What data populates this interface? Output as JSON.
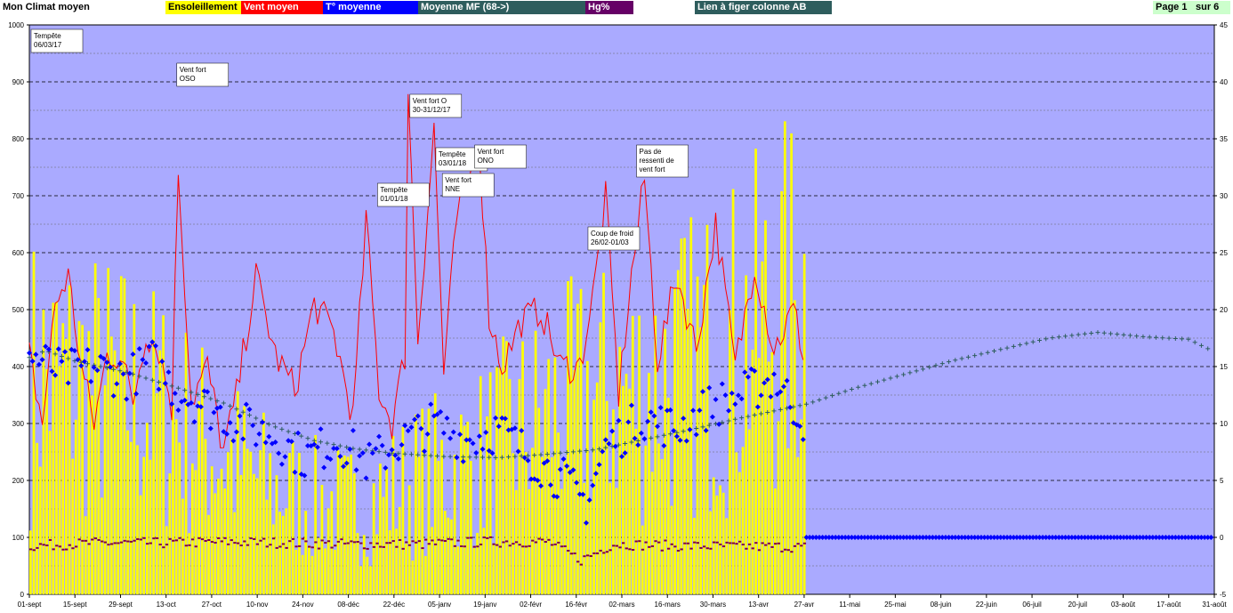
{
  "header": {
    "title": "Mon Climat moyen",
    "legend": [
      {
        "label": "Ensoleillement",
        "bg": "#ffff00",
        "fg": "#000000"
      },
      {
        "label": "Vent moyen",
        "bg": "#ff0000",
        "fg": "#ffffff"
      },
      {
        "label": "T° moyenne",
        "bg": "#0000ff",
        "fg": "#ffffff"
      },
      {
        "label": "Moyenne MF (68->)",
        "bg": "#2e5d5d",
        "fg": "#ffffff"
      },
      {
        "label": "Hg%",
        "bg": "#660066",
        "fg": "#ffffff"
      }
    ],
    "link_label": "Lien à figer colonne AB",
    "page_label": "Page 1",
    "page_total": "sur 6"
  },
  "chart_data": {
    "type": "combo",
    "colors": {
      "plot_bg": "#aaaaff",
      "sun": "#ffff00",
      "wind": "#ff0000",
      "temp": "#0000ff",
      "mf": "#2e5d5d",
      "hg": "#800040"
    },
    "y_left": {
      "min": 0,
      "max": 1000,
      "ticks": [
        "0",
        "100",
        "200",
        "300",
        "400",
        "500",
        "600",
        "700",
        "800",
        "900",
        "1000"
      ]
    },
    "y_right": {
      "min": -5,
      "max": 45,
      "ticks": [
        "-5",
        "0",
        "5",
        "10",
        "15",
        "20",
        "25",
        "30",
        "35",
        "40",
        "45"
      ]
    },
    "x_labels": [
      "01-sept",
      "15-sept",
      "29-sept",
      "13-oct",
      "27-oct",
      "10-nov",
      "24-nov",
      "08-déc",
      "22-déc",
      "05-janv",
      "19-janv",
      "02-févr",
      "16-févr",
      "02-mars",
      "16-mars",
      "30-mars",
      "13-avr",
      "27-avr",
      "11-mai",
      "25-mai",
      "08-juin",
      "22-juin",
      "06-juil",
      "20-juil",
      "03-août",
      "17-août",
      "31-août"
    ],
    "annotations": [
      {
        "lines": [
          "Tempête",
          "06/03/17"
        ],
        "day": 0
      },
      {
        "lines": [
          "Vent fort",
          "OSO"
        ],
        "day": 45
      },
      {
        "lines": [
          "Vent fort  O",
          "30-31/12/17"
        ],
        "day": 117
      },
      {
        "lines": [
          "Tempête",
          "03/01/18"
        ],
        "day": 125
      },
      {
        "lines": [
          "Tempête",
          "01/01/18"
        ],
        "day": 107
      },
      {
        "lines": [
          "Vent fort",
          "NNE"
        ],
        "day": 127
      },
      {
        "lines": [
          "Vent fort",
          "ONO"
        ],
        "day": 137
      },
      {
        "lines": [
          "Coup de froid",
          "26/02-01/03"
        ],
        "day": 172
      },
      {
        "lines": [
          "Pas de",
          "ressenti de",
          "vent fort"
        ],
        "day": 187
      }
    ],
    "data_days": 240,
    "total_days": 366,
    "mf_keypoints": [
      [
        0,
        15.8
      ],
      [
        5,
        16.4
      ],
      [
        14,
        15.5
      ],
      [
        30,
        14.5
      ],
      [
        45,
        13.2
      ],
      [
        60,
        11.8
      ],
      [
        75,
        9.8
      ],
      [
        88,
        8.5
      ],
      [
        100,
        7.8
      ],
      [
        112,
        7.4
      ],
      [
        128,
        7.1
      ],
      [
        145,
        7.0
      ],
      [
        160,
        7.3
      ],
      [
        175,
        7.7
      ],
      [
        190,
        8.6
      ],
      [
        205,
        9.5
      ],
      [
        220,
        10.5
      ],
      [
        240,
        11.7
      ],
      [
        255,
        13.1
      ],
      [
        270,
        14.3
      ],
      [
        285,
        15.5
      ],
      [
        300,
        16.5
      ],
      [
        315,
        17.5
      ],
      [
        330,
        18.0
      ],
      [
        345,
        17.6
      ],
      [
        358,
        17.4
      ],
      [
        366,
        16.3
      ]
    ],
    "temp_keypoints": [
      [
        0,
        16
      ],
      [
        10,
        14.5
      ],
      [
        20,
        15
      ],
      [
        30,
        14
      ],
      [
        38,
        15.5
      ],
      [
        45,
        13
      ],
      [
        55,
        11.5
      ],
      [
        65,
        10
      ],
      [
        75,
        9
      ],
      [
        85,
        7
      ],
      [
        95,
        8.5
      ],
      [
        105,
        6.5
      ],
      [
        115,
        8.5
      ],
      [
        125,
        10
      ],
      [
        135,
        8.5
      ],
      [
        145,
        9.5
      ],
      [
        155,
        7
      ],
      [
        165,
        5
      ],
      [
        172,
        3
      ],
      [
        178,
        8
      ],
      [
        190,
        10.5
      ],
      [
        200,
        9.5
      ],
      [
        210,
        11.5
      ],
      [
        220,
        12.5
      ],
      [
        230,
        14
      ],
      [
        240,
        10
      ]
    ],
    "wind_keypoints": [
      [
        0,
        420
      ],
      [
        4,
        300
      ],
      [
        8,
        510
      ],
      [
        12,
        560
      ],
      [
        16,
        400
      ],
      [
        20,
        300
      ],
      [
        24,
        420
      ],
      [
        28,
        420
      ],
      [
        32,
        340
      ],
      [
        36,
        460
      ],
      [
        40,
        430
      ],
      [
        44,
        330
      ],
      [
        46,
        750
      ],
      [
        50,
        340
      ],
      [
        55,
        400
      ],
      [
        60,
        250
      ],
      [
        64,
        350
      ],
      [
        70,
        560
      ],
      [
        76,
        420
      ],
      [
        82,
        360
      ],
      [
        88,
        510
      ],
      [
        94,
        460
      ],
      [
        100,
        310
      ],
      [
        104,
        660
      ],
      [
        108,
        360
      ],
      [
        112,
        300
      ],
      [
        116,
        420
      ],
      [
        117,
        890
      ],
      [
        120,
        450
      ],
      [
        125,
        820
      ],
      [
        128,
        390
      ],
      [
        132,
        660
      ],
      [
        136,
        740
      ],
      [
        139,
        790
      ],
      [
        142,
        490
      ],
      [
        146,
        400
      ],
      [
        152,
        480
      ],
      [
        158,
        500
      ],
      [
        164,
        400
      ],
      [
        170,
        400
      ],
      [
        174,
        520
      ],
      [
        178,
        700
      ],
      [
        182,
        350
      ],
      [
        186,
        560
      ],
      [
        190,
        730
      ],
      [
        194,
        410
      ],
      [
        200,
        560
      ],
      [
        206,
        430
      ],
      [
        212,
        650
      ],
      [
        218,
        400
      ],
      [
        224,
        580
      ],
      [
        230,
        430
      ],
      [
        236,
        500
      ],
      [
        240,
        400
      ]
    ],
    "sun_keypoints": [
      [
        0,
        560
      ],
      [
        10,
        560
      ],
      [
        20,
        540
      ],
      [
        30,
        520
      ],
      [
        40,
        480
      ],
      [
        50,
        420
      ],
      [
        60,
        360
      ],
      [
        70,
        300
      ],
      [
        80,
        260
      ],
      [
        90,
        240
      ],
      [
        100,
        230
      ],
      [
        110,
        260
      ],
      [
        120,
        300
      ],
      [
        130,
        330
      ],
      [
        140,
        360
      ],
      [
        150,
        420
      ],
      [
        160,
        460
      ],
      [
        170,
        500
      ],
      [
        180,
        520
      ],
      [
        190,
        540
      ],
      [
        200,
        580
      ],
      [
        210,
        620
      ],
      [
        220,
        660
      ],
      [
        230,
        720
      ],
      [
        240,
        780
      ]
    ],
    "hg_keypoints": [
      [
        0,
        85
      ],
      [
        20,
        90
      ],
      [
        40,
        90
      ],
      [
        60,
        92
      ],
      [
        80,
        90
      ],
      [
        100,
        88
      ],
      [
        120,
        88
      ],
      [
        140,
        92
      ],
      [
        160,
        92
      ],
      [
        170,
        60
      ],
      [
        180,
        88
      ],
      [
        200,
        85
      ],
      [
        220,
        84
      ],
      [
        240,
        83
      ]
    ]
  }
}
